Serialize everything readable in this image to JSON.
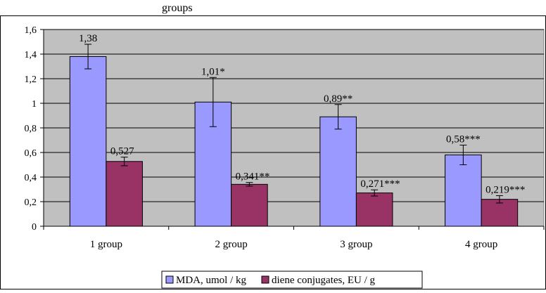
{
  "chart_data": {
    "type": "bar",
    "categories": [
      "1 group",
      "2 group",
      "3 group",
      "4 group"
    ],
    "series": [
      {
        "name": "MDA, umol / kg",
        "color": "#9999ff",
        "values": [
          1.38,
          1.01,
          0.89,
          0.58
        ],
        "errors": [
          0.1,
          0.2,
          0.1,
          0.08
        ],
        "labels": [
          "1,38",
          "1,01*",
          "0,89**",
          "0,58***"
        ]
      },
      {
        "name": "diene conjugates, EU / g",
        "color": "#993366",
        "values": [
          0.527,
          0.341,
          0.271,
          0.219
        ],
        "errors": [
          0.035,
          0.015,
          0.025,
          0.03
        ],
        "labels": [
          "0,527",
          "0,341**",
          "0,271***",
          "0,219***"
        ]
      }
    ],
    "yticks": [
      "0",
      "0,2",
      "0,4",
      "0,6",
      "0,8",
      "1",
      "1,2",
      "1,4",
      "1,6"
    ],
    "ylim": [
      0,
      1.6
    ],
    "plot_background": "#c0c0c0",
    "grid": true,
    "legend_position": "bottom",
    "title_fragment": "groups"
  }
}
